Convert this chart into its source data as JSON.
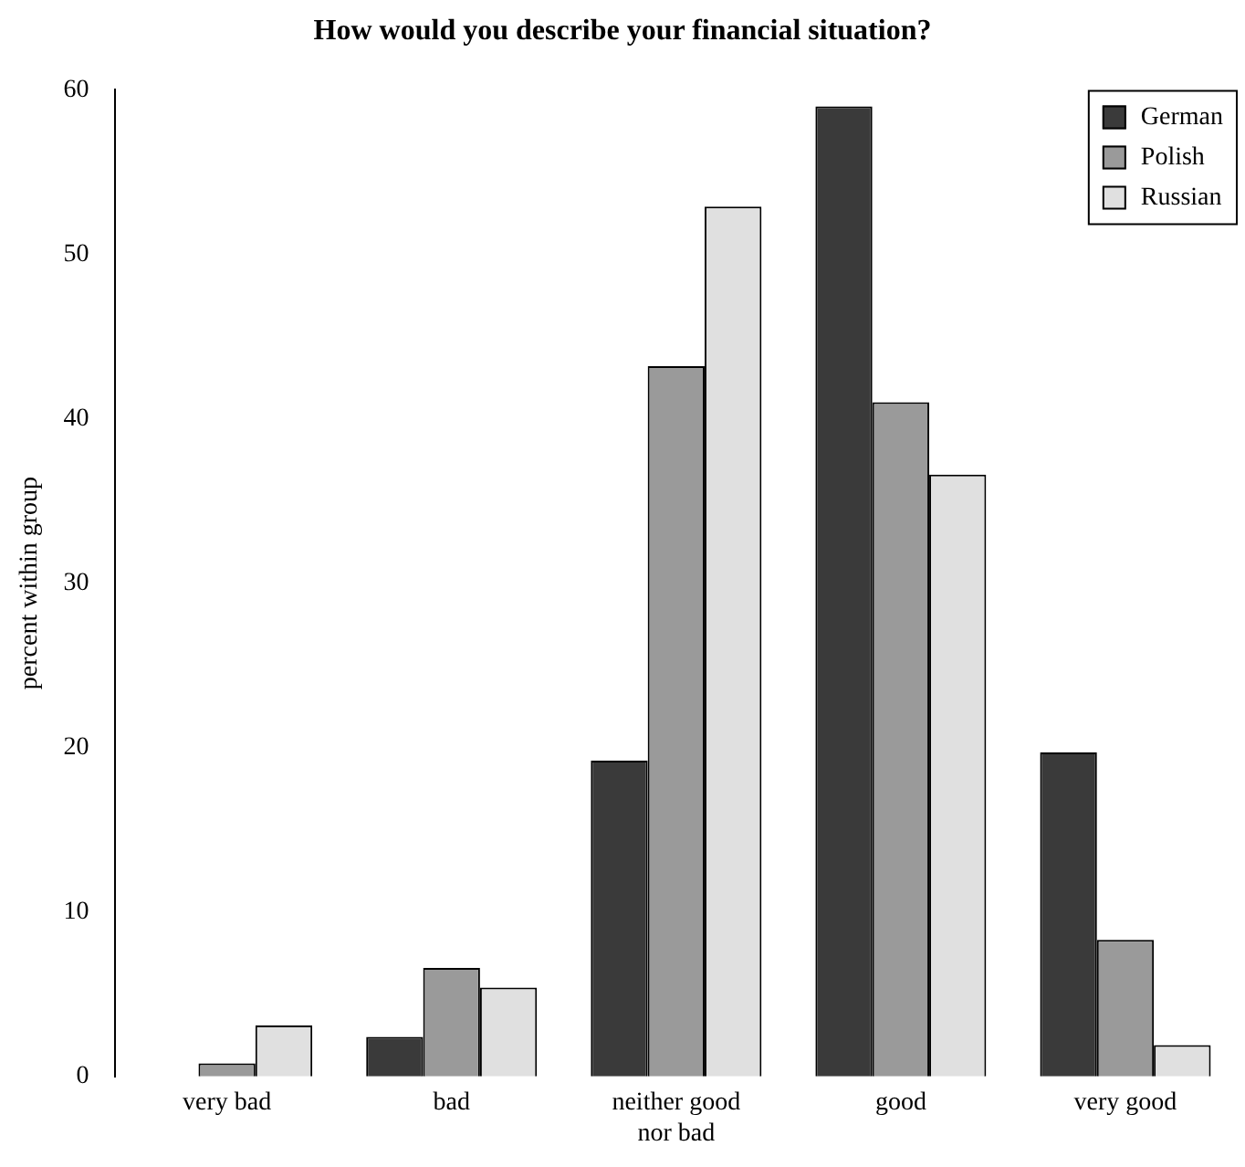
{
  "chart_data": {
    "type": "bar",
    "title": "How would you describe your financial situation?",
    "ylabel": "percent within group",
    "categories": [
      "very bad",
      "bad",
      "neither good\nnor bad",
      "good",
      "very good"
    ],
    "series": [
      {
        "name": "German",
        "color": "#3a3a3a",
        "values": [
          0,
          2.4,
          19.2,
          59,
          19.7
        ]
      },
      {
        "name": "Polish",
        "color": "#9a9a9a",
        "values": [
          0.8,
          6.6,
          43.2,
          41,
          8.3
        ]
      },
      {
        "name": "Russian",
        "color": "#e0e0e0",
        "values": [
          3.1,
          5.4,
          52.9,
          36.6,
          1.9
        ]
      }
    ],
    "ylim": [
      0,
      60
    ],
    "yticks": [
      0,
      10,
      20,
      30,
      40,
      50,
      60
    ],
    "grid": false,
    "legend": "top right"
  }
}
